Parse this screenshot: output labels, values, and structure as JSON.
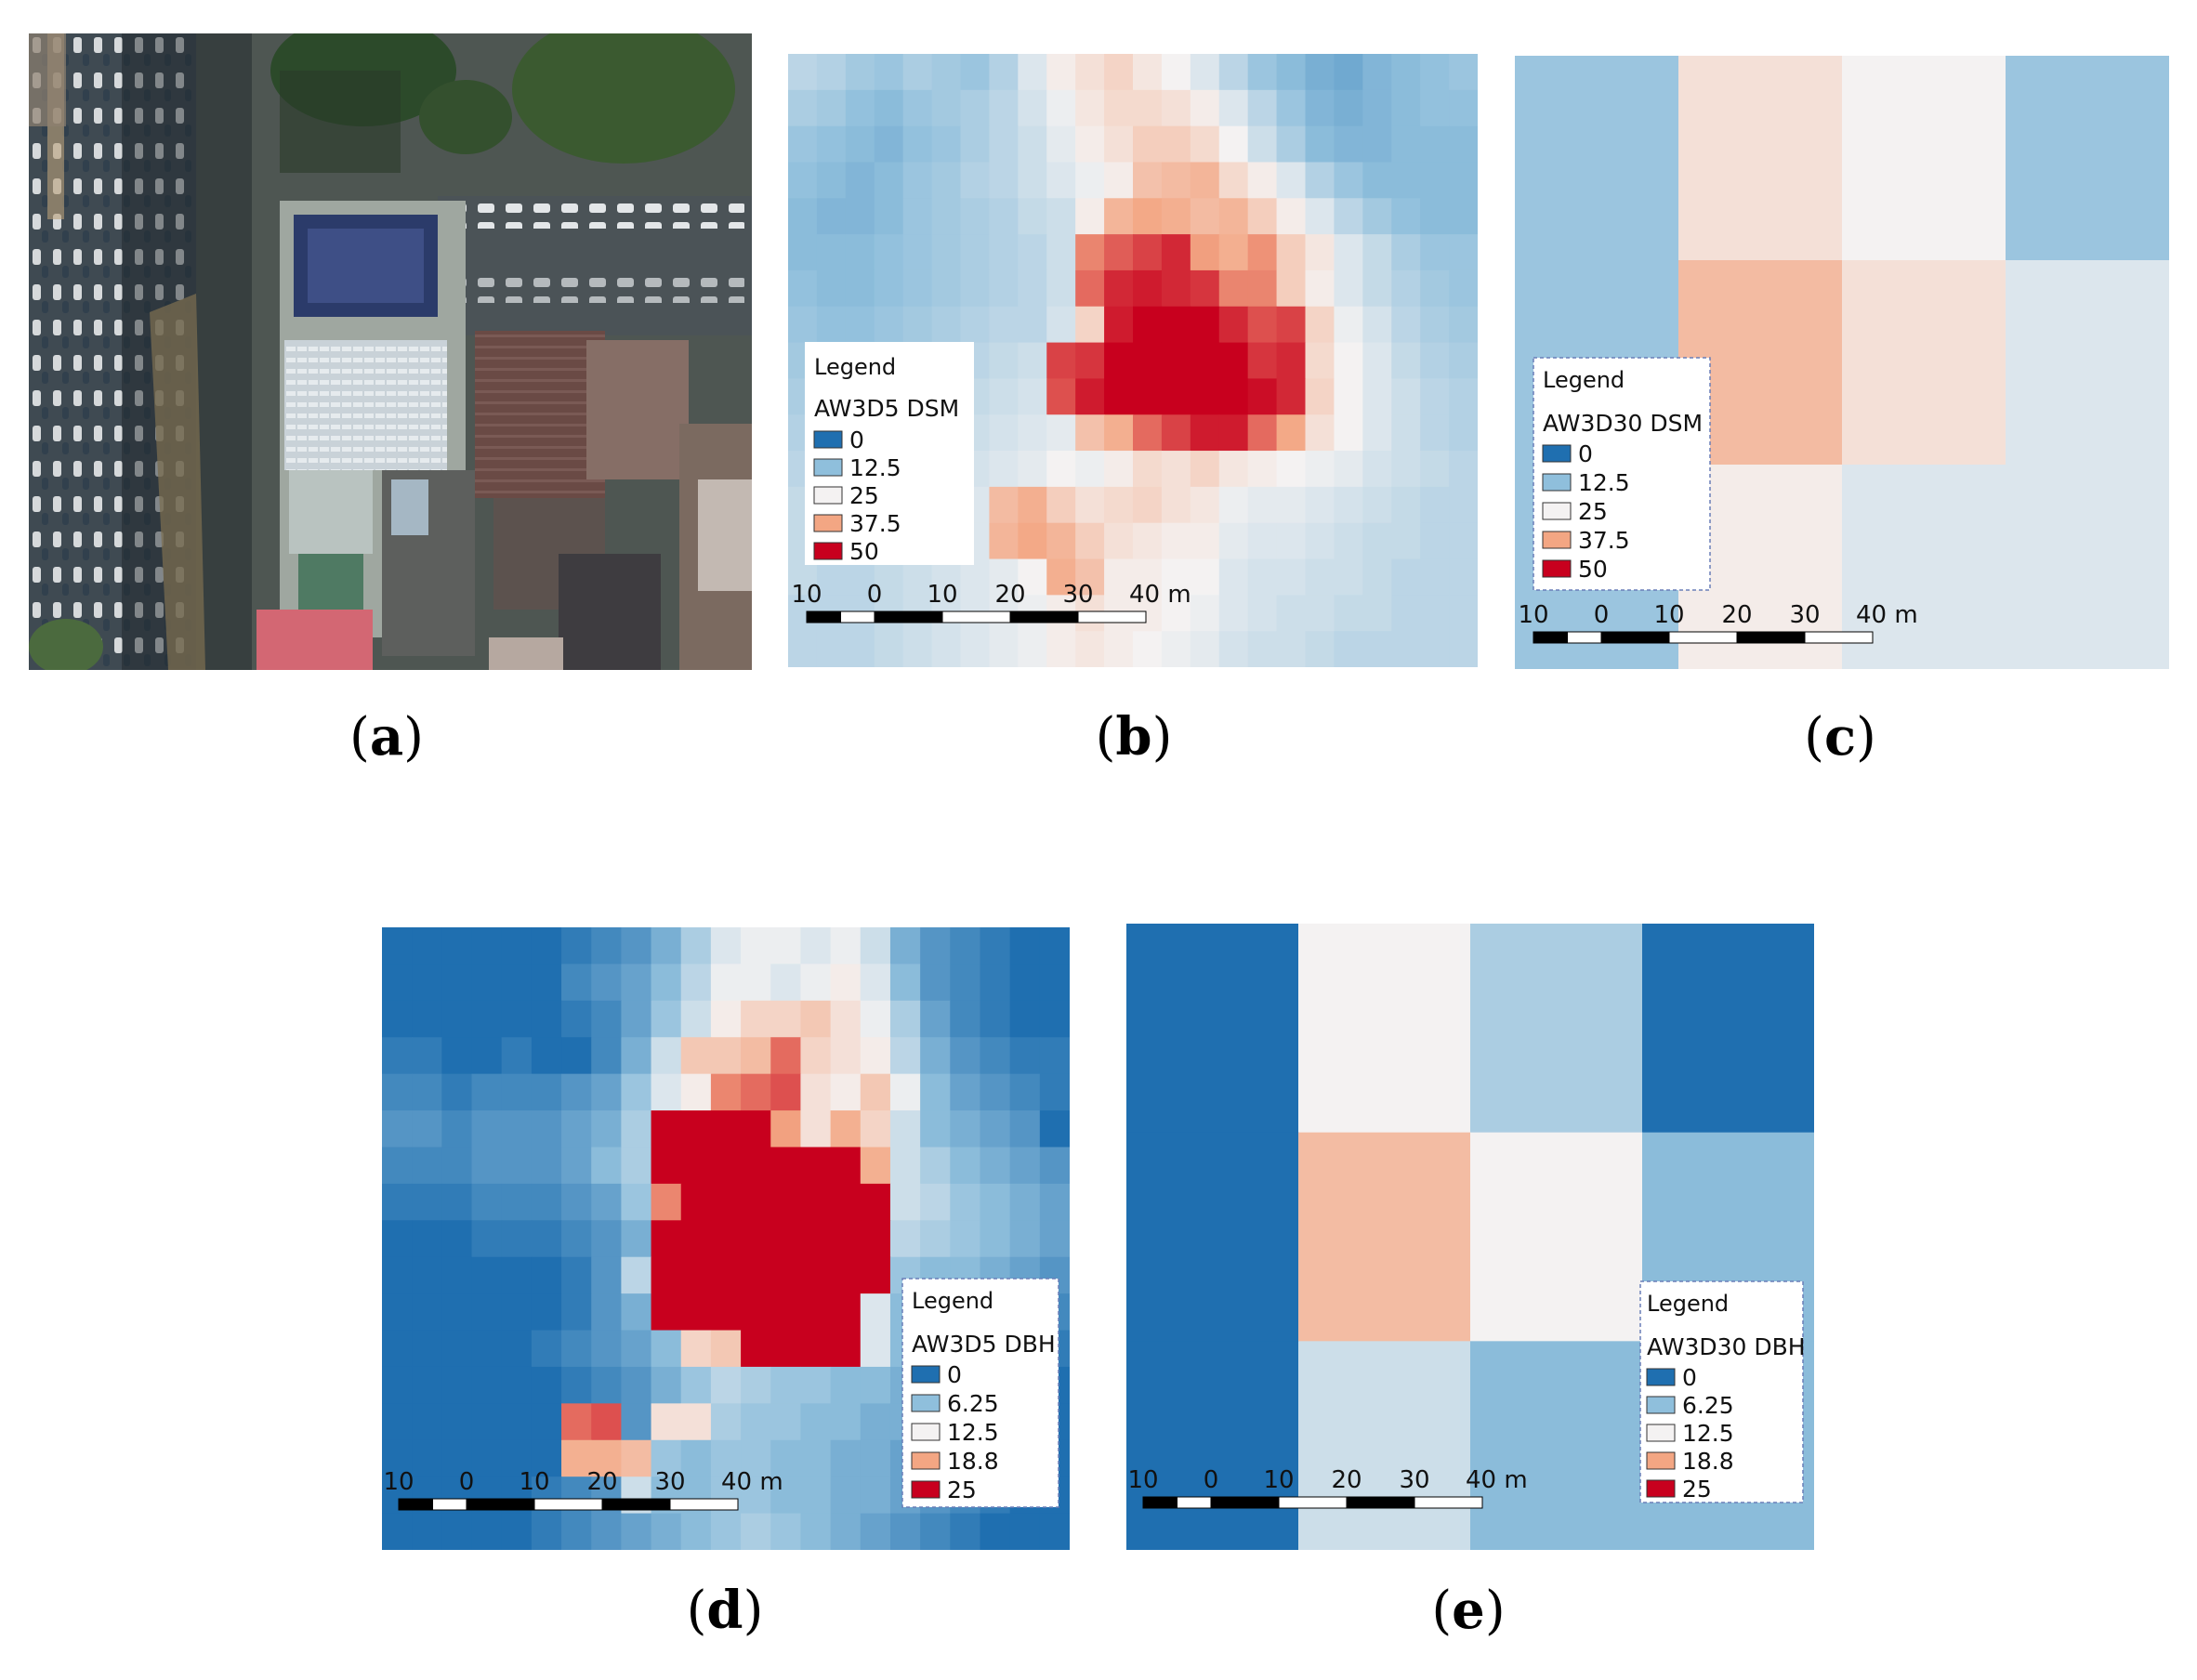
{
  "panels": {
    "a": {
      "label": "a"
    },
    "b": {
      "label": "b",
      "legend_heading": "Legend",
      "legend_title": "AW3D5 DSM",
      "legend_items": [
        {
          "value": "0",
          "color": "#1f6fb0"
        },
        {
          "value": "12.5",
          "color": "#8fbfdc"
        },
        {
          "value": "25",
          "color": "#f4f2f2"
        },
        {
          "value": "37.5",
          "color": "#f3a683"
        },
        {
          "value": "50",
          "color": "#c8001e"
        }
      ],
      "scale_labels": [
        "10",
        "0",
        "10",
        "20",
        "30",
        "40 m"
      ],
      "value_grid": [
        [
          18,
          17,
          15,
          14,
          16,
          15,
          14,
          17,
          22,
          26,
          28,
          30,
          27,
          25,
          22,
          18,
          14,
          12,
          10,
          9,
          11,
          12,
          13,
          14
        ],
        [
          16,
          15,
          13,
          12,
          14,
          15,
          16,
          18,
          21,
          24,
          27,
          29,
          29,
          28,
          26,
          22,
          18,
          14,
          11,
          10,
          11,
          12,
          13,
          13
        ],
        [
          14,
          13,
          12,
          11,
          13,
          14,
          16,
          18,
          20,
          23,
          26,
          28,
          31,
          31,
          29,
          25,
          20,
          16,
          12,
          11,
          11,
          12,
          12,
          12
        ],
        [
          13,
          12,
          11,
          12,
          14,
          15,
          17,
          18,
          20,
          22,
          24,
          26,
          33,
          34,
          35,
          29,
          26,
          22,
          17,
          14,
          12,
          12,
          12,
          12
        ],
        [
          12,
          11,
          11,
          12,
          14,
          15,
          16,
          17,
          19,
          20,
          26,
          35,
          37,
          36,
          34,
          35,
          31,
          26,
          22,
          18,
          15,
          13,
          12,
          12
        ],
        [
          12,
          12,
          12,
          13,
          14,
          15,
          16,
          17,
          18,
          20,
          40,
          43,
          45,
          47,
          38,
          36,
          39,
          31,
          27,
          22,
          19,
          16,
          14,
          14
        ],
        [
          13,
          12,
          12,
          13,
          14,
          15,
          16,
          17,
          18,
          20,
          42,
          47,
          48,
          47,
          46,
          40,
          40,
          31,
          26,
          22,
          19,
          17,
          15,
          14
        ],
        [
          14,
          13,
          13,
          14,
          15,
          16,
          17,
          18,
          18,
          21,
          30,
          48,
          50,
          50,
          50,
          47,
          44,
          45,
          30,
          24,
          21,
          18,
          16,
          15
        ],
        [
          15,
          14,
          14,
          15,
          16,
          17,
          18,
          19,
          20,
          45,
          46,
          50,
          50,
          50,
          50,
          50,
          46,
          47,
          29,
          25,
          22,
          19,
          17,
          16
        ],
        [
          16,
          15,
          15,
          16,
          17,
          18,
          19,
          20,
          21,
          44,
          48,
          50,
          50,
          50,
          50,
          50,
          49,
          47,
          30,
          25,
          22,
          20,
          18,
          17
        ],
        [
          17,
          16,
          16,
          17,
          18,
          19,
          20,
          21,
          22,
          23,
          33,
          36,
          42,
          45,
          48,
          48,
          42,
          37,
          28,
          25,
          22,
          20,
          18,
          17
        ],
        [
          18,
          17,
          17,
          18,
          19,
          20,
          21,
          22,
          23,
          25,
          24,
          26,
          29,
          28,
          30,
          27,
          26,
          25,
          24,
          23,
          21,
          20,
          19,
          18
        ],
        [
          19,
          18,
          18,
          19,
          20,
          21,
          22,
          34,
          36,
          31,
          28,
          29,
          30,
          28,
          27,
          24,
          23,
          23,
          22,
          21,
          20,
          19,
          18,
          18
        ],
        [
          19,
          18,
          18,
          19,
          20,
          21,
          22,
          35,
          37,
          35,
          31,
          28,
          27,
          26,
          26,
          23,
          22,
          22,
          21,
          20,
          19,
          19,
          18,
          18
        ],
        [
          19,
          18,
          18,
          19,
          20,
          21,
          22,
          23,
          25,
          36,
          33,
          26,
          26,
          25,
          25,
          22,
          21,
          21,
          20,
          20,
          19,
          18,
          18,
          18
        ],
        [
          18,
          18,
          18,
          19,
          20,
          21,
          22,
          23,
          24,
          26,
          28,
          26,
          26,
          25,
          24,
          22,
          21,
          20,
          20,
          19,
          19,
          18,
          18,
          18
        ],
        [
          18,
          18,
          18,
          19,
          20,
          21,
          22,
          23,
          24,
          26,
          27,
          26,
          25,
          24,
          23,
          21,
          20,
          20,
          19,
          18,
          18,
          18,
          18,
          18
        ]
      ]
    },
    "c": {
      "label": "c",
      "legend_heading": "Legend",
      "legend_title": "AW3D30 DSM",
      "legend_items": [
        {
          "value": "0",
          "color": "#1f6fb0"
        },
        {
          "value": "12.5",
          "color": "#8fbfdc"
        },
        {
          "value": "25",
          "color": "#f4f2f2"
        },
        {
          "value": "37.5",
          "color": "#f3a683"
        },
        {
          "value": "50",
          "color": "#c8001e"
        }
      ],
      "scale_labels": [
        "10",
        "0",
        "10",
        "20",
        "30",
        "40 m"
      ],
      "value_grid": [
        [
          14,
          28,
          25,
          14
        ],
        [
          14,
          34,
          28,
          22
        ],
        [
          14,
          26,
          22,
          22
        ]
      ]
    },
    "d": {
      "label": "d",
      "legend_heading": "Legend",
      "legend_title": "AW3D5 DBH",
      "legend_items": [
        {
          "value": "0",
          "color": "#1f6fb0"
        },
        {
          "value": "6.25",
          "color": "#8fbfdc"
        },
        {
          "value": "12.5",
          "color": "#f4f2f2"
        },
        {
          "value": "18.8",
          "color": "#f3a683"
        },
        {
          "value": "25",
          "color": "#c8001e"
        }
      ],
      "scale_labels": [
        "10",
        "0",
        "10",
        "20",
        "30",
        "40 m"
      ],
      "value_grid": [
        [
          0,
          0,
          0,
          0,
          0,
          0,
          1,
          2,
          3,
          5,
          8,
          11,
          12,
          12,
          11,
          12,
          10,
          5,
          3,
          2,
          1,
          0,
          0
        ],
        [
          0,
          0,
          0,
          0,
          0,
          0,
          2,
          3,
          4,
          6,
          9,
          12,
          12,
          11,
          12,
          13,
          11,
          6,
          3,
          2,
          1,
          0,
          0
        ],
        [
          0,
          0,
          0,
          0,
          0,
          0,
          1,
          2,
          4,
          7,
          10,
          13,
          15,
          15,
          16,
          14,
          12,
          8,
          4,
          2,
          1,
          0,
          0
        ],
        [
          1,
          1,
          0,
          0,
          1,
          0,
          0,
          2,
          5,
          10,
          16,
          16,
          17,
          21,
          15,
          14,
          13,
          9,
          5,
          3,
          2,
          1,
          1
        ],
        [
          2,
          2,
          1,
          2,
          2,
          2,
          3,
          4,
          7,
          11,
          13,
          20,
          21,
          22,
          14,
          13,
          16,
          12,
          6,
          4,
          3,
          2,
          1
        ],
        [
          3,
          3,
          2,
          3,
          3,
          3,
          4,
          5,
          8,
          25,
          25,
          25,
          25,
          19,
          14,
          18,
          15,
          10,
          6,
          5,
          4,
          3,
          0
        ],
        [
          2,
          2,
          2,
          3,
          3,
          3,
          4,
          6,
          8,
          25,
          25,
          25,
          25,
          25,
          25,
          25,
          18,
          10,
          8,
          6,
          5,
          4,
          3
        ],
        [
          1,
          1,
          1,
          2,
          2,
          2,
          3,
          4,
          7,
          20,
          25,
          25,
          25,
          25,
          25,
          25,
          25,
          10,
          9,
          7,
          6,
          5,
          4
        ],
        [
          0,
          0,
          0,
          1,
          1,
          1,
          2,
          3,
          5,
          25,
          25,
          25,
          25,
          25,
          25,
          25,
          25,
          9,
          8,
          7,
          6,
          5,
          4
        ],
        [
          0,
          0,
          0,
          0,
          0,
          0,
          1,
          3,
          9,
          25,
          25,
          25,
          25,
          25,
          25,
          25,
          25,
          7,
          6,
          6,
          5,
          4,
          3
        ],
        [
          0,
          0,
          0,
          0,
          0,
          0,
          1,
          3,
          5,
          25,
          25,
          25,
          25,
          25,
          25,
          25,
          11,
          6,
          6,
          5,
          4,
          3,
          2
        ],
        [
          0,
          0,
          0,
          0,
          0,
          1,
          2,
          3,
          4,
          6,
          15,
          16,
          25,
          25,
          25,
          25,
          11,
          6,
          5,
          4,
          3,
          2,
          1
        ],
        [
          0,
          0,
          0,
          0,
          0,
          0,
          1,
          2,
          3,
          5,
          7,
          9,
          8,
          7,
          7,
          6,
          6,
          5,
          4,
          3,
          2,
          1,
          0
        ],
        [
          0,
          0,
          0,
          0,
          0,
          0,
          21,
          22,
          3,
          14,
          14,
          8,
          7,
          7,
          6,
          6,
          5,
          5,
          4,
          3,
          2,
          1,
          0
        ],
        [
          0,
          0,
          0,
          0,
          0,
          0,
          18,
          18,
          17,
          7,
          6,
          7,
          7,
          6,
          6,
          5,
          5,
          4,
          4,
          3,
          2,
          1,
          0
        ],
        [
          0,
          0,
          0,
          0,
          0,
          1,
          2,
          3,
          10,
          6,
          6,
          7,
          7,
          6,
          6,
          5,
          5,
          4,
          3,
          2,
          1,
          0,
          0
        ],
        [
          0,
          0,
          0,
          0,
          0,
          1,
          2,
          3,
          4,
          5,
          6,
          7,
          8,
          7,
          6,
          5,
          4,
          3,
          2,
          1,
          0,
          0,
          0
        ]
      ]
    },
    "e": {
      "label": "e",
      "legend_heading": "Legend",
      "legend_title": "AW3D30 DBH",
      "legend_items": [
        {
          "value": "0",
          "color": "#1f6fb0"
        },
        {
          "value": "6.25",
          "color": "#8fbfdc"
        },
        {
          "value": "12.5",
          "color": "#f4f2f2"
        },
        {
          "value": "18.8",
          "color": "#f3a683"
        },
        {
          "value": "25",
          "color": "#c8001e"
        }
      ],
      "scale_labels": [
        "10",
        "0",
        "10",
        "20",
        "30",
        "40 m"
      ],
      "value_grid": [
        [
          0,
          12.5,
          8,
          0
        ],
        [
          0,
          17,
          12.5,
          6
        ],
        [
          0,
          10,
          6,
          6
        ]
      ]
    }
  }
}
